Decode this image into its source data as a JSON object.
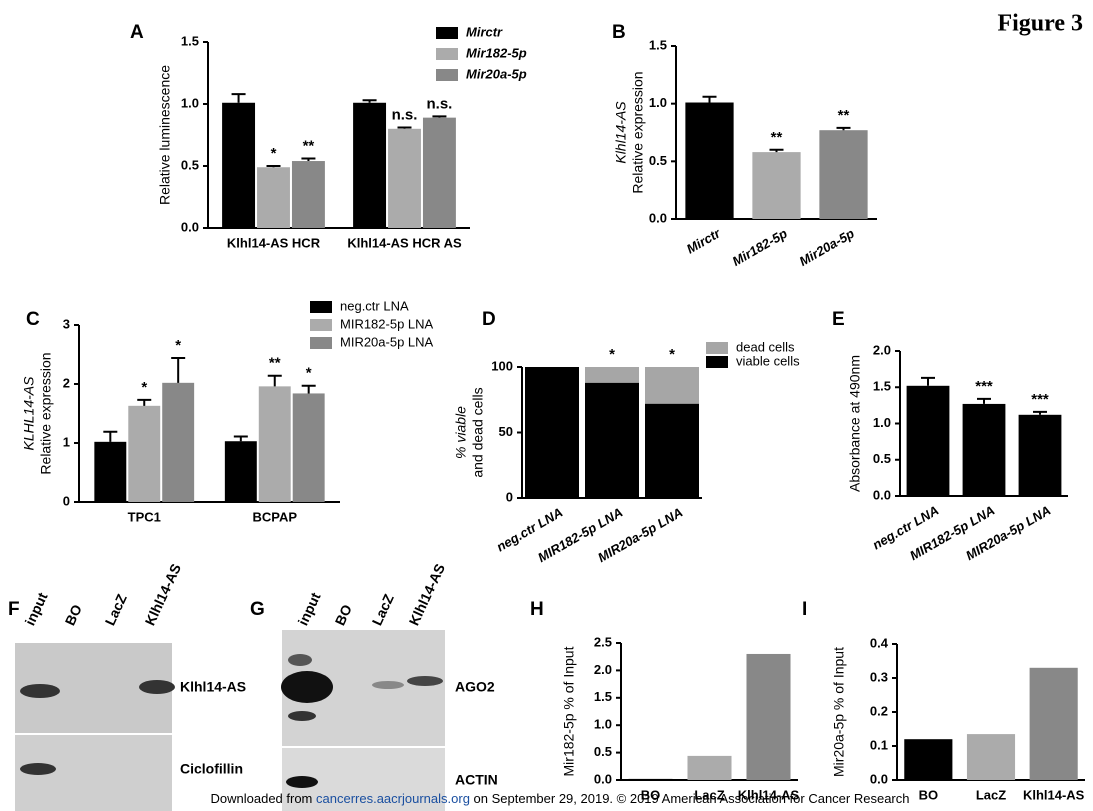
{
  "figure_title": "Figure 3",
  "chart_data": [
    {
      "type": "bar",
      "panel": "A",
      "ylabel": [
        "Relative luminescence"
      ],
      "categories": [
        "Klhl14-AS HCR",
        "Klhl14-AS HCR AS"
      ],
      "series": [
        {
          "name": "Mirctr",
          "color": "#000000",
          "values": [
            1.01,
            1.01
          ],
          "errors": [
            0.07,
            0.02
          ]
        },
        {
          "name": "Mir182-5p",
          "color": "#ababab",
          "values": [
            0.49,
            0.8
          ],
          "errors": [
            0.01,
            0.01
          ],
          "stars": [
            "*",
            "n.s."
          ]
        },
        {
          "name": "Mir20a-5p",
          "color": "#888888",
          "values": [
            0.54,
            0.89
          ],
          "errors": [
            0.02,
            0.01
          ],
          "stars": [
            "**",
            "n.s."
          ]
        }
      ],
      "ylim": [
        0,
        1.5
      ],
      "yticks": [
        {
          "value": 0,
          "label": "0.0"
        },
        0.5,
        {
          "value": 1,
          "label": "1.0"
        },
        1.5
      ],
      "legend": "top-right"
    },
    {
      "type": "bar",
      "panel": "B",
      "ylabel": [
        "Klhl14-AS",
        "Relative expression"
      ],
      "categories": [
        "Mirctr",
        "Mir182-5p",
        "Mir20a-5p"
      ],
      "values": [
        1.01,
        0.58,
        0.77
      ],
      "errors": [
        0.05,
        0.02,
        0.02
      ],
      "colors": [
        "#000000",
        "#ababab",
        "#888888"
      ],
      "stars": [
        null,
        "**",
        "**"
      ],
      "ylim": [
        0,
        1.5
      ],
      "yticks": [
        {
          "value": 0,
          "label": "0.0"
        },
        0.5,
        {
          "value": 1,
          "label": "1.0"
        },
        1.5
      ]
    },
    {
      "type": "bar",
      "panel": "C",
      "ylabel": [
        "KLHL14-AS",
        "Relative expression"
      ],
      "categories": [
        "TPC1",
        "BCPAP"
      ],
      "series": [
        {
          "name": "neg.ctr LNA",
          "color": "#000000",
          "values": [
            1.02,
            1.03
          ],
          "errors": [
            0.17,
            0.08
          ]
        },
        {
          "name": "MIR182-5p LNA",
          "color": "#ababab",
          "values": [
            1.63,
            1.96
          ],
          "errors": [
            0.1,
            0.18
          ],
          "stars": [
            "*",
            "**"
          ]
        },
        {
          "name": "MIR20a-5p LNA",
          "color": "#888888",
          "values": [
            2.02,
            1.84
          ],
          "errors": [
            0.42,
            0.13
          ],
          "stars": [
            "*",
            "*"
          ]
        }
      ],
      "ylim": [
        0,
        3
      ],
      "yticks": [
        0,
        1,
        2,
        3
      ],
      "legend": "top-right"
    },
    {
      "type": "stacked_bar",
      "panel": "D",
      "ylabel": [
        "% viable",
        "and dead cells"
      ],
      "categories": [
        "neg.ctr LNA",
        "MIR182-5p LNA",
        "MIR20a-5p LNA"
      ],
      "series": [
        {
          "name": "viable cells",
          "color": "#000000",
          "values": [
            100,
            88,
            72
          ]
        },
        {
          "name": "dead cells",
          "color": "#a6a6a6",
          "values": [
            0,
            12,
            28
          ]
        }
      ],
      "stars": [
        null,
        "*",
        "*"
      ],
      "ylim": [
        0,
        100
      ],
      "yticks": [
        0,
        50,
        100
      ],
      "legend": "top-right"
    },
    {
      "type": "bar",
      "panel": "E",
      "ylabel": [
        "Absorbance at 490nm"
      ],
      "categories": [
        "neg.ctr LNA",
        "MIR182-5p LNA",
        "MIR20a-5p LNA"
      ],
      "values": [
        1.52,
        1.27,
        1.12
      ],
      "errors": [
        0.11,
        0.07,
        0.04
      ],
      "colors": [
        "#000000",
        "#000000",
        "#000000"
      ],
      "stars": [
        null,
        "***",
        "***"
      ],
      "ylim": [
        0,
        2
      ],
      "yticks": [
        {
          "value": 0,
          "label": "0.0"
        },
        0.5,
        {
          "value": 1,
          "label": "1.0"
        },
        1.5,
        {
          "value": 2,
          "label": "2.0"
        }
      ]
    },
    {
      "type": "bar",
      "panel": "H",
      "ylabel": [
        "Mir182-5p % of Input"
      ],
      "categories": [
        "BO",
        "LacZ",
        "Klhl14-AS"
      ],
      "values": [
        0.02,
        0.44,
        2.3
      ],
      "colors": [
        "#000000",
        "#ababab",
        "#888888"
      ],
      "ylim": [
        0,
        2.5
      ],
      "yticks": [
        {
          "value": 0,
          "label": "0.0"
        },
        0.5,
        {
          "value": 1,
          "label": "1.0"
        },
        1.5,
        {
          "value": 2,
          "label": "2.0"
        },
        2.5
      ]
    },
    {
      "type": "bar",
      "panel": "I",
      "ylabel": [
        "Mir20a-5p % of Input"
      ],
      "categories": [
        "BO",
        "LacZ",
        "Klhl14-AS"
      ],
      "values": [
        0.12,
        0.135,
        0.33
      ],
      "colors": [
        "#000000",
        "#ababab",
        "#888888"
      ],
      "ylim": [
        0,
        0.4
      ],
      "yticks": [
        {
          "value": 0,
          "label": "0.0"
        },
        0.1,
        0.2,
        0.3,
        0.4
      ]
    }
  ],
  "blots": [
    {
      "panel": "F",
      "lanes": [
        "input",
        "BO",
        "LacZ",
        "Klhl14-AS"
      ],
      "rows": [
        "Klhl14-AS",
        "Ciclofillin"
      ]
    },
    {
      "panel": "G",
      "lanes": [
        "input",
        "BO",
        "LacZ",
        "Klhl14-AS"
      ],
      "rows": [
        "AGO2",
        "ACTIN"
      ]
    }
  ],
  "footer": {
    "prefix": "Downloaded from",
    "link": "cancerres.aacrjournals.org",
    "suffix": "on September 29, 2019. © 2019 American Association for Cancer Research"
  }
}
